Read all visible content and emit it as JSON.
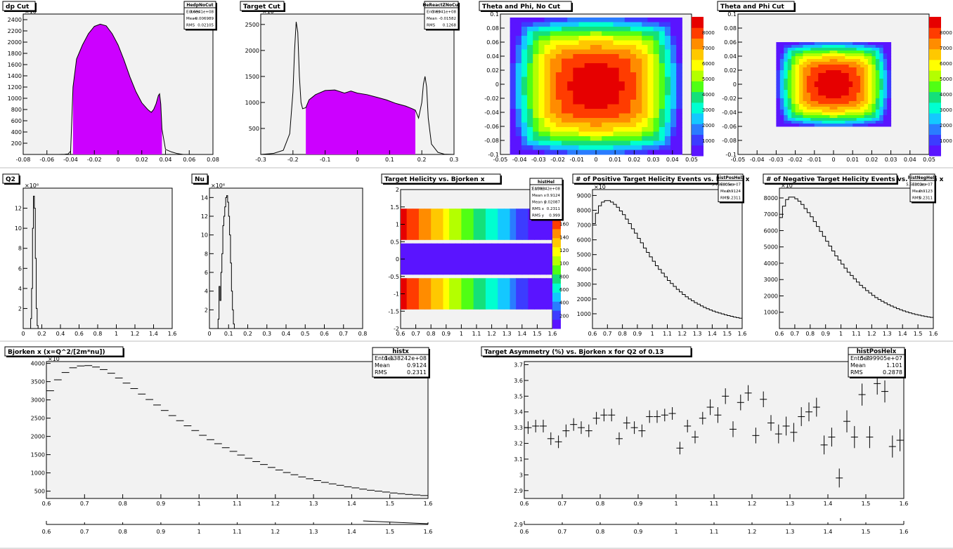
{
  "chart_data": [
    {
      "id": "dp",
      "type": "histogram",
      "title": "dp Cut",
      "exponent_label": "×10",
      "xlim": [
        -0.08,
        0.08
      ],
      "ylim": [
        0,
        2500
      ],
      "xticks": [
        "-0.08",
        "-0.06",
        "-0.04",
        "-0.02",
        "0",
        "0.02",
        "0.04",
        "0.06",
        "0.08"
      ],
      "yticks": [
        "200",
        "400",
        "600",
        "800",
        "1000",
        "1200",
        "1400",
        "1600",
        "1800",
        "2000",
        "2200",
        "2400"
      ],
      "stats": {
        "name": "HedpNoCut",
        "rows": [
          [
            "Entries",
            "3.6941e+08"
          ],
          [
            "Mean",
            "-0.006989"
          ],
          [
            "RMS",
            "0.02105"
          ]
        ]
      },
      "cut_range": [
        -0.038,
        0.037
      ],
      "fill_color": "#cc00ff",
      "x": [
        -0.08,
        -0.07,
        -0.06,
        -0.05,
        -0.045,
        -0.042,
        -0.04,
        -0.038,
        -0.035,
        -0.03,
        -0.025,
        -0.02,
        -0.015,
        -0.01,
        -0.005,
        0,
        0.005,
        0.01,
        0.015,
        0.02,
        0.025,
        0.028,
        0.03,
        0.032,
        0.034,
        0.035,
        0.036,
        0.037,
        0.04,
        0.045,
        0.05,
        0.055,
        0.06,
        0.08
      ],
      "values": [
        0,
        0,
        0,
        0,
        3,
        10,
        60,
        1200,
        1700,
        1950,
        2150,
        2280,
        2320,
        2290,
        2150,
        1950,
        1680,
        1380,
        1120,
        920,
        800,
        750,
        800,
        900,
        1050,
        1080,
        900,
        450,
        90,
        45,
        15,
        0,
        0,
        0
      ]
    },
    {
      "id": "target",
      "type": "histogram",
      "title": "Target Cut",
      "exponent_label": "×10",
      "xlim": [
        -0.3,
        0.3
      ],
      "ylim": [
        0,
        2700
      ],
      "xticks": [
        "-0.3",
        "-0.2",
        "-0.1",
        "0",
        "0.1",
        "0.2",
        "0.3"
      ],
      "yticks": [
        "500",
        "1000",
        "1500",
        "2000",
        "2500"
      ],
      "stats": {
        "name": "HeReactZNoCut",
        "rows": [
          [
            "Entries",
            "3.6941e+08"
          ],
          [
            "Mean",
            "-0.01582"
          ],
          [
            "RMS",
            "0.1268"
          ]
        ]
      },
      "cut_range": [
        -0.16,
        0.18
      ],
      "fill_color": "#cc00ff",
      "x": [
        -0.3,
        -0.26,
        -0.23,
        -0.21,
        -0.2,
        -0.195,
        -0.19,
        -0.185,
        -0.18,
        -0.175,
        -0.17,
        -0.16,
        -0.15,
        -0.13,
        -0.1,
        -0.07,
        -0.04,
        -0.02,
        0,
        0.03,
        0.06,
        0.09,
        0.12,
        0.15,
        0.17,
        0.18,
        0.19,
        0.2,
        0.205,
        0.21,
        0.215,
        0.22,
        0.23,
        0.25,
        0.27,
        0.3
      ],
      "values": [
        0,
        20,
        80,
        400,
        1200,
        2000,
        2550,
        2350,
        1500,
        1000,
        880,
        900,
        1050,
        1150,
        1230,
        1240,
        1180,
        1220,
        1180,
        1150,
        1100,
        1050,
        980,
        930,
        880,
        850,
        700,
        1000,
        1350,
        1500,
        1300,
        700,
        200,
        40,
        5,
        0
      ]
    },
    {
      "id": "thphi",
      "type": "heatmap",
      "title": "Theta and Phi, No Cut",
      "xlim": [
        -0.05,
        0.05
      ],
      "ylim": [
        -0.1,
        0.1
      ],
      "xticks": [
        "-0.05",
        "-0.04",
        "-0.03",
        "-0.02",
        "-0.01",
        "0",
        "0.01",
        "0.02",
        "0.03",
        "0.04",
        "0.05"
      ],
      "yticks": [
        "-0.1",
        "-0.08",
        "-0.06",
        "-0.04",
        "-0.02",
        "0",
        "0.02",
        "0.04",
        "0.06",
        "0.08",
        "0.1"
      ],
      "zlim": [
        0,
        9000
      ],
      "zticks": [
        "1000",
        "2000",
        "3000",
        "4000",
        "5000",
        "6000",
        "7000",
        "8000"
      ],
      "region": [
        -0.045,
        0.045,
        -0.1,
        0.095
      ]
    },
    {
      "id": "thphicut",
      "type": "heatmap",
      "title": "Theta and Phi Cut",
      "xlim": [
        -0.05,
        0.05
      ],
      "ylim": [
        -0.1,
        0.1
      ],
      "xticks": [
        "-0.05",
        "-0.04",
        "-0.03",
        "-0.02",
        "-0.01",
        "0",
        "0.01",
        "0.02",
        "0.03",
        "0.04",
        "0.05"
      ],
      "yticks": [
        "-0.1",
        "-0.08",
        "-0.06",
        "-0.04",
        "-0.02",
        "0",
        "0.02",
        "0.04",
        "0.06",
        "0.08",
        "0.1"
      ],
      "zlim": [
        0,
        9000
      ],
      "zticks": [
        "1000",
        "2000",
        "3000",
        "4000",
        "5000",
        "6000",
        "7000",
        "8000"
      ],
      "region": [
        -0.03,
        0.03,
        -0.06,
        0.06
      ]
    },
    {
      "id": "q2",
      "type": "histogram",
      "title": "Q2",
      "exponent_label": "×10⁶",
      "xlim": [
        0,
        1.6
      ],
      "ylim": [
        0,
        14
      ],
      "xticks": [
        "0",
        "0.2",
        "0.4",
        "0.6",
        "0.8",
        "1",
        "1.2",
        "1.4",
        "1.6"
      ],
      "yticks": [
        "2",
        "4",
        "6",
        "8",
        "10",
        "12"
      ],
      "x": [
        0.07,
        0.08,
        0.09,
        0.1,
        0.11,
        0.12,
        0.13,
        0.14,
        0.15,
        0.16
      ],
      "values": [
        0,
        1,
        4,
        10,
        13.2,
        12,
        7,
        2,
        0.3,
        0
      ]
    },
    {
      "id": "nu",
      "type": "histogram",
      "title": "Nu",
      "exponent_label": "×10⁶",
      "xlim": [
        0,
        0.8
      ],
      "ylim": [
        0,
        15
      ],
      "xticks": [
        "0",
        "0.1",
        "0.2",
        "0.3",
        "0.4",
        "0.5",
        "0.6",
        "0.7",
        "0.8"
      ],
      "yticks": [
        "2",
        "4",
        "6",
        "8",
        "10",
        "12",
        "14"
      ],
      "x": [
        0.04,
        0.045,
        0.05,
        0.055,
        0.06,
        0.065,
        0.07,
        0.075,
        0.08,
        0.085,
        0.09,
        0.095,
        0.1,
        0.105,
        0.11,
        0.115,
        0.12,
        0.125,
        0.13
      ],
      "values": [
        0,
        1,
        4.5,
        3,
        6,
        8,
        11,
        12,
        13,
        14,
        14.2,
        13.5,
        12,
        10,
        7,
        4,
        2,
        0.5,
        0
      ]
    },
    {
      "id": "helicity",
      "type": "heatmap",
      "title": "Target Helicity vs. Bjorken x",
      "xlim": [
        0.6,
        1.6
      ],
      "ylim": [
        -2,
        2
      ],
      "xticks": [
        "0.6",
        "0.7",
        "0.8",
        "0.9",
        "1",
        "1.1",
        "1.2",
        "1.3",
        "1.4",
        "1.5",
        "1.6"
      ],
      "yticks": [
        "-2",
        "-1.5",
        "-1",
        "-0.5",
        "0",
        "0.5",
        "1",
        "1.5",
        "2"
      ],
      "zticks": [
        "200",
        "400",
        "600",
        "800",
        "100",
        "120",
        "140",
        "160"
      ],
      "stats": {
        "name": "histHel",
        "rows": [
          [
            "Entries",
            "1.138242e+08"
          ],
          [
            "Mean x",
            "0.9124"
          ],
          [
            "Mean y",
            "0.02087"
          ],
          [
            "RMS x",
            "0.2311"
          ],
          [
            "RMS y",
            "0.999"
          ]
        ]
      },
      "bands": [
        1,
        0,
        -1
      ]
    },
    {
      "id": "pos",
      "type": "histogram",
      "title": "# of Positive Target Helicity Events vs. Bjorken x",
      "exponent_label": "×10",
      "xlim": [
        0.6,
        1.6
      ],
      "ylim": [
        0,
        9400
      ],
      "xticks": [
        "0.6",
        "0.7",
        "0.8",
        "0.9",
        "1",
        "1.1",
        "1.2",
        "1.3",
        "1.4",
        "1.5",
        "1.6"
      ],
      "yticks": [
        "1000",
        "2000",
        "3000",
        "4000",
        "5000",
        "6000",
        "7000",
        "8000",
        "9000"
      ],
      "stats": {
        "name": "histPosHelx",
        "rows": [
          [
            "Entries",
            "5.799905e+07"
          ],
          [
            "Mean",
            "0.9124"
          ],
          [
            "RMS",
            "0.2311"
          ]
        ]
      },
      "x": [
        0.6,
        0.62,
        0.64,
        0.66,
        0.68,
        0.7,
        0.72,
        0.74,
        0.76,
        0.78,
        0.8,
        0.82,
        0.84,
        0.86,
        0.88,
        0.9,
        0.92,
        0.94,
        0.96,
        0.98,
        1.0,
        1.02,
        1.04,
        1.06,
        1.08,
        1.1,
        1.12,
        1.14,
        1.16,
        1.18,
        1.2,
        1.22,
        1.24,
        1.26,
        1.28,
        1.3,
        1.32,
        1.34,
        1.36,
        1.38,
        1.4,
        1.42,
        1.44,
        1.46,
        1.48,
        1.5,
        1.52,
        1.54,
        1.56,
        1.58
      ],
      "values": [
        7100,
        7800,
        8300,
        8550,
        8650,
        8650,
        8550,
        8400,
        8200,
        7950,
        7700,
        7400,
        7100,
        6750,
        6450,
        6100,
        5800,
        5450,
        5150,
        4850,
        4550,
        4250,
        4000,
        3750,
        3500,
        3250,
        3050,
        2850,
        2650,
        2480,
        2300,
        2150,
        2000,
        1880,
        1750,
        1650,
        1530,
        1430,
        1340,
        1260,
        1180,
        1110,
        1050,
        990,
        930,
        880,
        830,
        780,
        740,
        700
      ]
    },
    {
      "id": "neg",
      "type": "histogram",
      "title": "# of Negative Target Helicity Events vs. Bjorken x",
      "exponent_label": "×10",
      "xlim": [
        0.6,
        1.6
      ],
      "ylim": [
        0,
        8600
      ],
      "xticks": [
        "0.6",
        "0.7",
        "0.8",
        "0.9",
        "1",
        "1.1",
        "1.2",
        "1.3",
        "1.4",
        "1.5",
        "1.6"
      ],
      "yticks": [
        "1000",
        "2000",
        "3000",
        "4000",
        "5000",
        "6000",
        "7000",
        "8000"
      ],
      "stats": {
        "name": "histNegHelx",
        "rows": [
          [
            "Entries",
            "5.58302e+07"
          ],
          [
            "Mean",
            "0.9123"
          ],
          [
            "RMS",
            "0.2311"
          ]
        ]
      },
      "x": [
        0.6,
        0.62,
        0.64,
        0.66,
        0.68,
        0.7,
        0.72,
        0.74,
        0.76,
        0.78,
        0.8,
        0.82,
        0.84,
        0.86,
        0.88,
        0.9,
        0.92,
        0.94,
        0.96,
        0.98,
        1.0,
        1.02,
        1.04,
        1.06,
        1.08,
        1.1,
        1.12,
        1.14,
        1.16,
        1.18,
        1.2,
        1.22,
        1.24,
        1.26,
        1.28,
        1.3,
        1.32,
        1.34,
        1.36,
        1.38,
        1.4,
        1.42,
        1.44,
        1.46,
        1.48,
        1.5,
        1.52,
        1.54,
        1.56,
        1.58
      ],
      "values": [
        6800,
        7500,
        7900,
        8050,
        8050,
        7950,
        7800,
        7600,
        7350,
        7100,
        6850,
        6550,
        6250,
        5950,
        5650,
        5350,
        5050,
        4750,
        4450,
        4200,
        3950,
        3700,
        3450,
        3250,
        3050,
        2850,
        2650,
        2500,
        2330,
        2180,
        2030,
        1900,
        1780,
        1670,
        1570,
        1470,
        1380,
        1300,
        1220,
        1150,
        1080,
        1020,
        960,
        910,
        860,
        820,
        780,
        740,
        710,
        680
      ]
    },
    {
      "id": "bjorken",
      "type": "histogram",
      "title": "Bjorken x  (x=Q^2/[2m*nu])",
      "exponent_label": "×10",
      "xlim": [
        0.6,
        1.6
      ],
      "ylim": [
        300,
        4050
      ],
      "xticks": [
        "0.6",
        "0.7",
        "0.8",
        "0.9",
        "1",
        "1.1",
        "1.2",
        "1.3",
        "1.4",
        "1.5",
        "1.6"
      ],
      "yticks": [
        "500",
        "1000",
        "1500",
        "2000",
        "2500",
        "3000",
        "3500",
        "4000"
      ],
      "stats": {
        "name": "histx",
        "rows": [
          [
            "Entries",
            "1.138242e+08"
          ],
          [
            "Mean",
            "0.9124"
          ],
          [
            "RMS",
            "0.2311"
          ]
        ]
      },
      "x": [
        0.6,
        0.62,
        0.64,
        0.66,
        0.68,
        0.7,
        0.72,
        0.74,
        0.76,
        0.78,
        0.8,
        0.82,
        0.84,
        0.86,
        0.88,
        0.9,
        0.92,
        0.94,
        0.96,
        0.98,
        1.0,
        1.02,
        1.04,
        1.06,
        1.08,
        1.1,
        1.12,
        1.14,
        1.16,
        1.18,
        1.2,
        1.22,
        1.24,
        1.26,
        1.28,
        1.3,
        1.32,
        1.34,
        1.36,
        1.38,
        1.4,
        1.42,
        1.44,
        1.46,
        1.48,
        1.5,
        1.52,
        1.54,
        1.56,
        1.58
      ],
      "values": [
        3250,
        3550,
        3750,
        3880,
        3930,
        3940,
        3900,
        3830,
        3730,
        3600,
        3460,
        3310,
        3160,
        3010,
        2860,
        2710,
        2570,
        2430,
        2290,
        2160,
        2030,
        1910,
        1800,
        1690,
        1590,
        1490,
        1400,
        1310,
        1230,
        1150,
        1080,
        1010,
        950,
        890,
        840,
        790,
        740,
        700,
        660,
        620,
        590,
        555,
        525,
        500,
        475,
        450,
        430,
        410,
        395,
        380
      ]
    },
    {
      "id": "asym",
      "type": "scatter",
      "title": "Target Asymmetry (%) vs. Bjorken x for Q2 of 0.13",
      "xlim": [
        0.6,
        1.6
      ],
      "ylim": [
        2.85,
        3.72
      ],
      "xticks": [
        "0.6",
        "0.7",
        "0.8",
        "0.9",
        "1",
        "1.1",
        "1.2",
        "1.3",
        "1.4",
        "1.5",
        "1.6"
      ],
      "yticks": [
        "2.9",
        "3",
        "3.1",
        "3.2",
        "3.3",
        "3.4",
        "3.5",
        "3.6",
        "3.7"
      ],
      "stats": {
        "name": "histPosHelx",
        "rows": [
          [
            "Entries",
            "5.799905e+07"
          ],
          [
            "Mean",
            "1.101"
          ],
          [
            "RMS",
            "0.2878"
          ]
        ]
      },
      "x": [
        0.61,
        0.63,
        0.65,
        0.67,
        0.69,
        0.71,
        0.73,
        0.75,
        0.77,
        0.79,
        0.81,
        0.83,
        0.85,
        0.87,
        0.89,
        0.91,
        0.93,
        0.95,
        0.97,
        0.99,
        1.01,
        1.03,
        1.05,
        1.07,
        1.09,
        1.11,
        1.13,
        1.15,
        1.17,
        1.19,
        1.21,
        1.23,
        1.25,
        1.27,
        1.29,
        1.31,
        1.33,
        1.35,
        1.37,
        1.39,
        1.41,
        1.43,
        1.45,
        1.47,
        1.49,
        1.51,
        1.53,
        1.55,
        1.57,
        1.59
      ],
      "values": [
        3.3,
        3.31,
        3.31,
        3.23,
        3.21,
        3.28,
        3.32,
        3.3,
        3.28,
        3.36,
        3.38,
        3.38,
        3.23,
        3.33,
        3.3,
        3.28,
        3.37,
        3.37,
        3.38,
        3.39,
        3.17,
        3.31,
        3.24,
        3.36,
        3.43,
        3.38,
        3.5,
        3.29,
        3.46,
        3.52,
        3.25,
        3.48,
        3.33,
        3.26,
        3.31,
        3.27,
        3.37,
        3.4,
        3.43,
        3.19,
        3.24,
        2.98,
        3.34,
        3.24,
        3.51,
        3.24,
        3.58,
        3.53,
        3.18,
        3.22
      ],
      "errors": [
        0.04,
        0.04,
        0.04,
        0.04,
        0.04,
        0.04,
        0.04,
        0.04,
        0.04,
        0.04,
        0.04,
        0.04,
        0.04,
        0.04,
        0.04,
        0.04,
        0.04,
        0.04,
        0.04,
        0.04,
        0.04,
        0.04,
        0.04,
        0.04,
        0.05,
        0.05,
        0.05,
        0.05,
        0.05,
        0.05,
        0.05,
        0.05,
        0.05,
        0.06,
        0.06,
        0.06,
        0.06,
        0.06,
        0.06,
        0.06,
        0.06,
        0.06,
        0.07,
        0.07,
        0.07,
        0.07,
        0.07,
        0.07,
        0.07,
        0.07
      ]
    },
    {
      "id": "bjorken_lower",
      "type": "histogram",
      "title": "",
      "xlim": [
        0.6,
        1.6
      ],
      "xticks": [
        "0.6",
        "0.7",
        "0.8",
        "0.9",
        "1",
        "1.1",
        "1.2",
        "1.3",
        "1.4",
        "1.5",
        "1.6"
      ]
    },
    {
      "id": "asym_lower",
      "type": "scatter",
      "title": "",
      "xlim": [
        0.6,
        1.6
      ],
      "xticks": [
        "0.6",
        "0.7",
        "0.8",
        "0.9",
        "1",
        "1.1",
        "1.2",
        "1.3",
        "1.4",
        "1.5",
        "1.6"
      ],
      "yticks": [
        "2.9"
      ]
    }
  ]
}
